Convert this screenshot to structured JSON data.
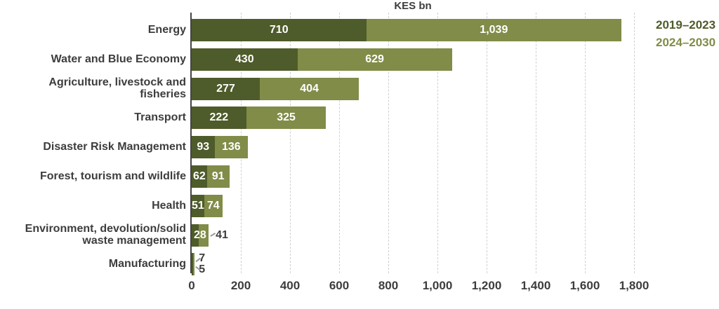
{
  "chart_data": {
    "type": "bar",
    "orientation": "horizontal",
    "stacked": true,
    "title": "KES bn",
    "categories": [
      "Energy",
      "Water and Blue Economy",
      "Agriculture, livestock and fisheries",
      "Transport",
      "Disaster Risk Management",
      "Forest, tourism and wildlife",
      "Health",
      "Environment, devolution/solid waste management",
      "Manufacturing"
    ],
    "categories_display": [
      [
        "Energy"
      ],
      [
        "Water and Blue Economy"
      ],
      [
        "Agriculture, livestock and fisheries"
      ],
      [
        "Transport"
      ],
      [
        "Disaster Risk Management"
      ],
      [
        "Forest, tourism and wildlife"
      ],
      [
        "Health"
      ],
      [
        "Environment, devolution/solid",
        "waste management"
      ],
      [
        "Manufacturing"
      ]
    ],
    "series": [
      {
        "name": "2019–2023",
        "color": "#4e5b2a",
        "values": [
          710,
          430,
          277,
          222,
          93,
          62,
          51,
          28,
          7
        ]
      },
      {
        "name": "2024–2030",
        "color": "#808c48",
        "values": [
          1039,
          629,
          404,
          325,
          136,
          91,
          74,
          41,
          5
        ]
      }
    ],
    "value_labels": [
      [
        "710",
        "1,039"
      ],
      [
        "430",
        "629"
      ],
      [
        "277",
        "404"
      ],
      [
        "222",
        "325"
      ],
      [
        "93",
        "136"
      ],
      [
        "62",
        "91"
      ],
      [
        "51",
        "74"
      ],
      [
        "28",
        "41"
      ],
      [
        "7",
        "5"
      ]
    ],
    "label_modes": [
      [
        "in",
        "in"
      ],
      [
        "in",
        "in"
      ],
      [
        "in",
        "in"
      ],
      [
        "in",
        "in"
      ],
      [
        "in",
        "in"
      ],
      [
        "in",
        "in"
      ],
      [
        "in",
        "in"
      ],
      [
        "overflow",
        "out"
      ],
      [
        "out2",
        "out2"
      ]
    ],
    "xlim": [
      0,
      1800
    ],
    "x_ticks": [
      "0",
      "200",
      "400",
      "600",
      "800",
      "1,000",
      "1,200",
      "1,400",
      "1,600",
      "1,800"
    ],
    "grid": "vertical-dashed",
    "legend_position": "top-right"
  },
  "colors": {
    "text": "#3d3d3d",
    "axis": "#454545",
    "grid": "#d0d0d0",
    "value_label": "#ffffff"
  }
}
